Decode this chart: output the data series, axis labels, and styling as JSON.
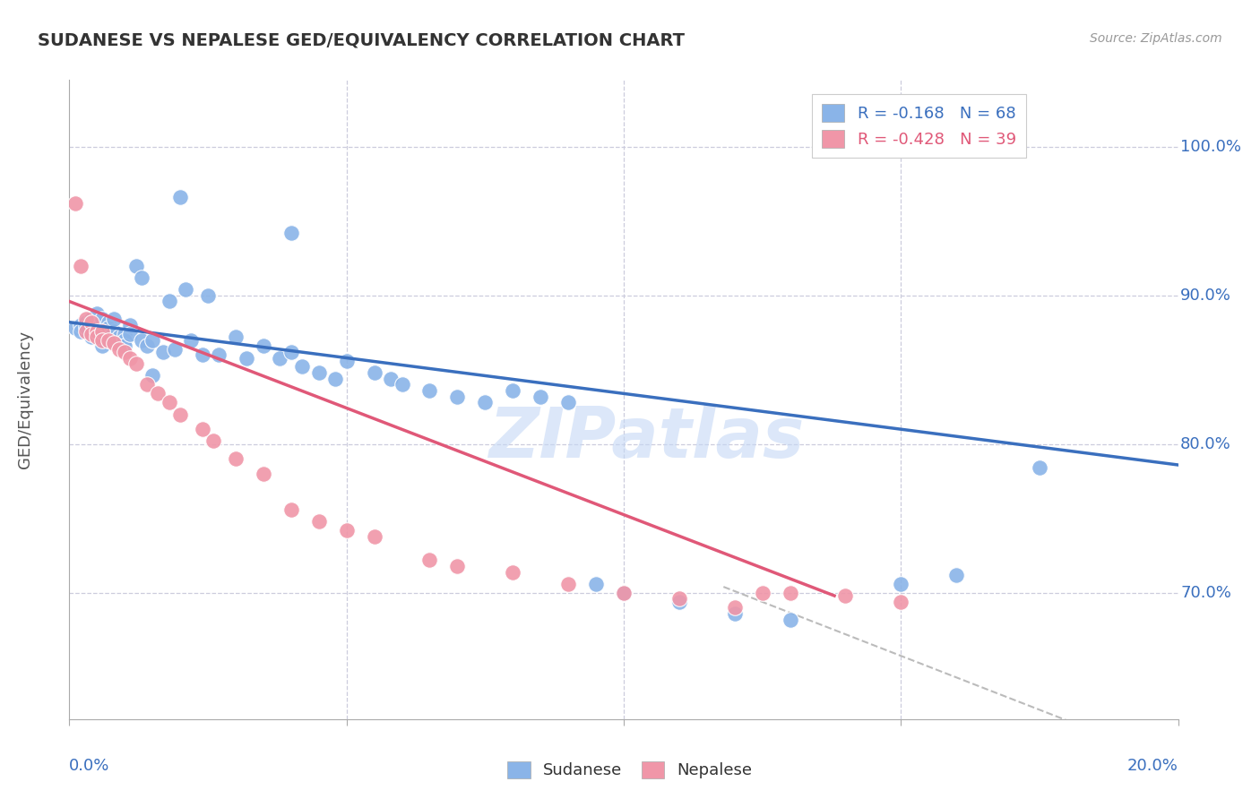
{
  "title": "SUDANESE VS NEPALESE GED/EQUIVALENCY CORRELATION CHART",
  "source": "Source: ZipAtlas.com",
  "ylabel": "GED/Equivalency",
  "ytick_labels": [
    "100.0%",
    "90.0%",
    "80.0%",
    "70.0%"
  ],
  "ytick_values": [
    1.0,
    0.9,
    0.8,
    0.7
  ],
  "xlim": [
    0.0,
    0.2
  ],
  "ylim": [
    0.615,
    1.045
  ],
  "legend_blue_label": "R = -0.168   N = 68",
  "legend_pink_label": "R = -0.428   N = 39",
  "sudanese_color": "#8ab4e8",
  "nepalese_color": "#f096a8",
  "blue_line_color": "#3a6fbe",
  "pink_line_color": "#e05878",
  "dashed_line_color": "#bbbbbb",
  "grid_color": "#ccccdd",
  "watermark": "ZIPatlas",
  "title_color": "#333333",
  "source_color": "#999999",
  "axis_label_color": "#3a6fbe",
  "ylabel_color": "#555555",
  "sudanese_x": [
    0.001,
    0.002,
    0.002,
    0.003,
    0.003,
    0.004,
    0.004,
    0.005,
    0.005,
    0.006,
    0.006,
    0.006,
    0.007,
    0.007,
    0.007,
    0.007,
    0.008,
    0.008,
    0.008,
    0.009,
    0.009,
    0.01,
    0.01,
    0.01,
    0.011,
    0.011,
    0.012,
    0.013,
    0.013,
    0.014,
    0.015,
    0.015,
    0.017,
    0.018,
    0.019,
    0.02,
    0.021,
    0.022,
    0.024,
    0.025,
    0.027,
    0.03,
    0.032,
    0.035,
    0.038,
    0.04,
    0.042,
    0.045,
    0.048,
    0.05,
    0.055,
    0.058,
    0.06,
    0.065,
    0.07,
    0.075,
    0.08,
    0.085,
    0.09,
    0.095,
    0.1,
    0.11,
    0.12,
    0.13,
    0.15,
    0.16,
    0.175,
    0.04
  ],
  "sudanese_y": [
    0.878,
    0.88,
    0.876,
    0.882,
    0.879,
    0.884,
    0.872,
    0.888,
    0.876,
    0.874,
    0.884,
    0.866,
    0.87,
    0.876,
    0.882,
    0.878,
    0.87,
    0.876,
    0.884,
    0.872,
    0.868,
    0.874,
    0.87,
    0.866,
    0.88,
    0.874,
    0.92,
    0.912,
    0.87,
    0.866,
    0.87,
    0.846,
    0.862,
    0.896,
    0.864,
    0.966,
    0.904,
    0.87,
    0.86,
    0.9,
    0.86,
    0.872,
    0.858,
    0.866,
    0.858,
    0.862,
    0.852,
    0.848,
    0.844,
    0.856,
    0.848,
    0.844,
    0.84,
    0.836,
    0.832,
    0.828,
    0.836,
    0.832,
    0.828,
    0.706,
    0.7,
    0.694,
    0.686,
    0.682,
    0.706,
    0.712,
    0.784,
    0.942
  ],
  "nepalese_x": [
    0.001,
    0.002,
    0.003,
    0.003,
    0.004,
    0.004,
    0.005,
    0.005,
    0.006,
    0.006,
    0.007,
    0.008,
    0.009,
    0.01,
    0.011,
    0.012,
    0.014,
    0.016,
    0.018,
    0.02,
    0.024,
    0.026,
    0.03,
    0.035,
    0.04,
    0.045,
    0.05,
    0.055,
    0.065,
    0.07,
    0.08,
    0.09,
    0.1,
    0.11,
    0.12,
    0.125,
    0.13,
    0.14,
    0.15
  ],
  "nepalese_y": [
    0.962,
    0.92,
    0.884,
    0.876,
    0.882,
    0.874,
    0.876,
    0.872,
    0.876,
    0.87,
    0.87,
    0.868,
    0.864,
    0.862,
    0.858,
    0.854,
    0.84,
    0.834,
    0.828,
    0.82,
    0.81,
    0.802,
    0.79,
    0.78,
    0.756,
    0.748,
    0.742,
    0.738,
    0.722,
    0.718,
    0.714,
    0.706,
    0.7,
    0.696,
    0.69,
    0.7,
    0.7,
    0.698,
    0.694
  ],
  "blue_line_x": [
    0.0,
    0.2
  ],
  "blue_line_y": [
    0.882,
    0.786
  ],
  "pink_line_x": [
    0.0,
    0.138
  ],
  "pink_line_y": [
    0.896,
    0.698
  ],
  "dashed_line_x": [
    0.118,
    0.2
  ],
  "dashed_line_y": [
    0.704,
    0.585
  ]
}
